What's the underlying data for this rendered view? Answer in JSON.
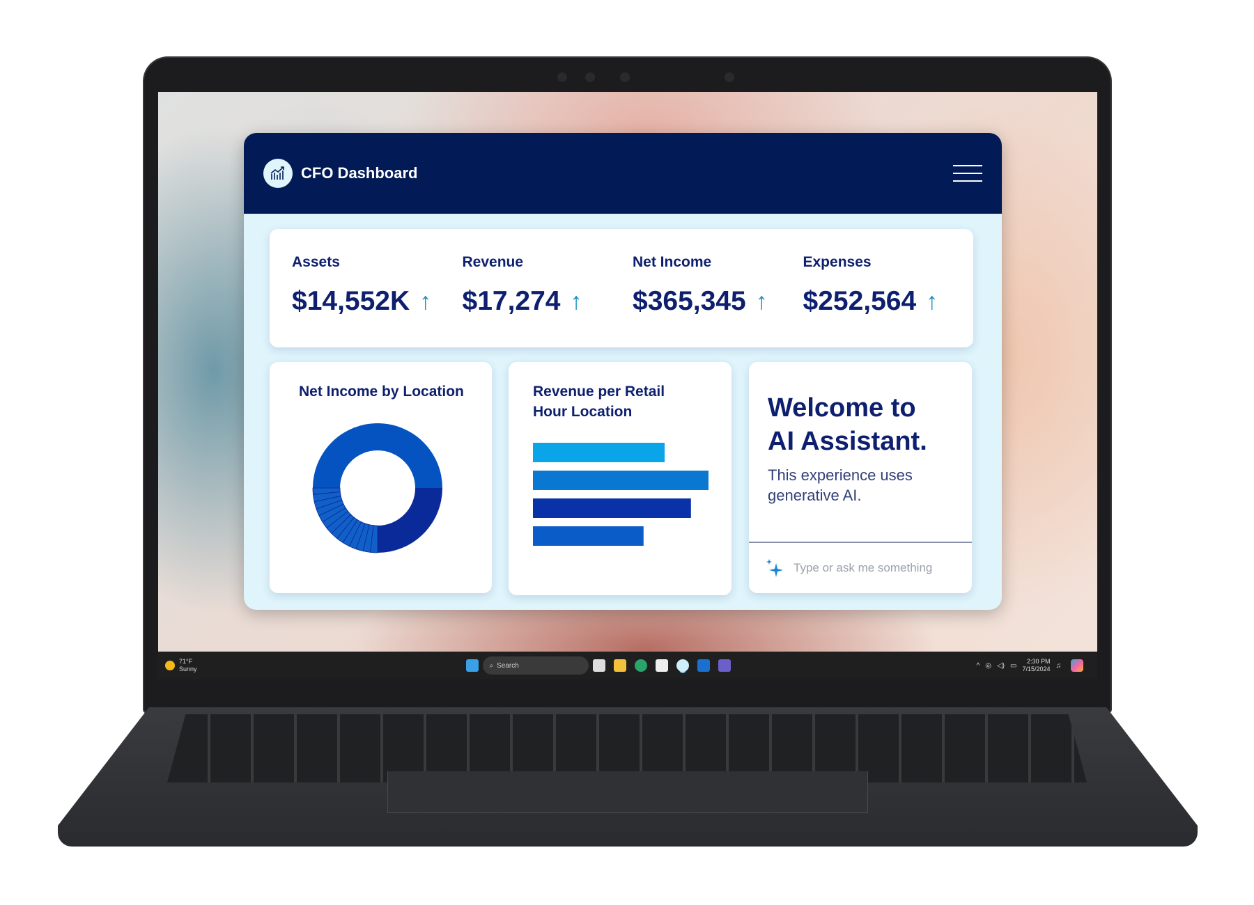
{
  "dashboard": {
    "title": "CFO Dashboard",
    "kpis": [
      {
        "label": "Assets",
        "value": "$14,552K",
        "trend": "up"
      },
      {
        "label": "Revenue",
        "value": "$17,274",
        "trend": "up"
      },
      {
        "label": "Net Income",
        "value": "$365,345",
        "trend": "up"
      },
      {
        "label": "Expenses",
        "value": "$252,564",
        "trend": "up"
      }
    ],
    "arrow": "↑",
    "colors": {
      "header": "#021a55",
      "text": "#0d1f6e",
      "background": "#dff4fb"
    }
  },
  "ai": {
    "title_line1": "Welcome to",
    "title_line2": "AI Assistant.",
    "subtitle": "This experience uses generative AI.",
    "placeholder": "Type or ask me something",
    "icon": "sparkle-icon"
  },
  "chart_data": [
    {
      "type": "pie",
      "title": "Net Income by Location",
      "donut": true,
      "values": [
        50,
        25,
        1.8,
        1.8,
        1.8,
        1.8,
        1.8,
        1.8,
        1.8,
        1.8,
        1.8,
        1.8,
        1.8,
        1.8,
        1.8,
        1.6
      ],
      "colors": [
        "#0553c0",
        "#0a2a9a",
        "#1060c8"
      ]
    },
    {
      "type": "bar",
      "orientation": "horizontal",
      "title": "Revenue per Retail Hour Location",
      "values": [
        75,
        100,
        90,
        63
      ],
      "colors": [
        "#0aa5e8",
        "#0a78d0",
        "#0a32a8",
        "#0a5cc8"
      ]
    }
  ],
  "taskbar": {
    "weather_temp": "71°F",
    "weather_desc": "Sunny",
    "search": "Search",
    "time": "2:30 PM",
    "date": "7/15/2024"
  }
}
